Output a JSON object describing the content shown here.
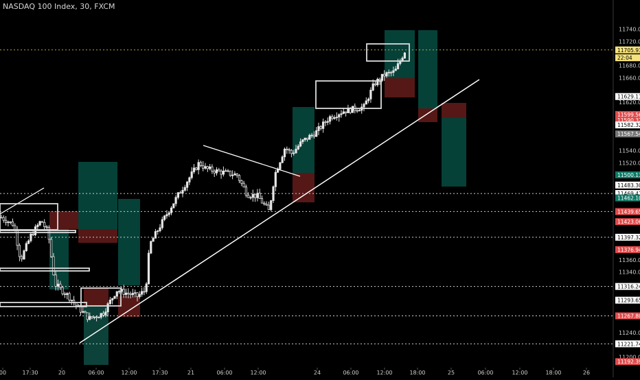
{
  "chart_title": "NASDAQ 100 Index, 30, FXCM",
  "chart_data": {
    "type": "candlestick",
    "title": "NASDAQ 100 Index, 30, FXCM",
    "symbol": "NASDAQ 100 Index",
    "timeframe": "30",
    "source": "FXCM",
    "ylim": [
      11200,
      11740
    ],
    "price_axis_ticks": [
      "11740.00",
      "11720.00",
      "11680.00",
      "11660.00",
      "11620.00",
      "11580.00",
      "11540.00",
      "11520.00",
      "11483.30",
      "11360.00",
      "11340.00",
      "11240.00",
      "11200.00"
    ],
    "price_labels": [
      {
        "value": "11705.93",
        "price": 11705.93,
        "color": "#f5e27a"
      },
      {
        "value": "22:04",
        "price": 11693,
        "color": "#f5e27a"
      },
      {
        "value": "11629.11",
        "price": 11629.11,
        "color": "#ffffff"
      },
      {
        "value": "11599.56",
        "price": 11599.56,
        "color": "#e14b4b"
      },
      {
        "value": "11590.32",
        "price": 11590.32,
        "color": "#e14b4b"
      },
      {
        "value": "11582.32",
        "price": 11582.32,
        "color": "#ffffff"
      },
      {
        "value": "11567.54",
        "price": 11567.54,
        "color": "#787878"
      },
      {
        "value": "11500.13",
        "price": 11500.13,
        "color": "#0e7a67"
      },
      {
        "value": "11483.30",
        "price": 11483.3,
        "color": "#ffffff"
      },
      {
        "value": "11469.41",
        "price": 11469.41,
        "color": "#ffffff"
      },
      {
        "value": "11462.10",
        "price": 11462.1,
        "color": "#0e7a67"
      },
      {
        "value": "11439.65",
        "price": 11439.65,
        "color": "#e14b4b"
      },
      {
        "value": "11423.06",
        "price": 11423.06,
        "color": "#e14b4b"
      },
      {
        "value": "11397.32",
        "price": 11397.32,
        "color": "#ffffff"
      },
      {
        "value": "11376.94",
        "price": 11376.94,
        "color": "#e14b4b"
      },
      {
        "value": "11316.24",
        "price": 11316.24,
        "color": "#ffffff"
      },
      {
        "value": "11293.65",
        "price": 11293.65,
        "color": "#ffffff"
      },
      {
        "value": "11267.80",
        "price": 11267.8,
        "color": "#e14b4b"
      },
      {
        "value": "11221.74",
        "price": 11221.74,
        "color": "#ffffff"
      },
      {
        "value": "11192.39",
        "price": 11192.39,
        "color": "#e14b4b"
      }
    ],
    "time_axis_ticks": [
      "00",
      "17:30",
      "20",
      "06:00",
      "12:00",
      "17:30",
      "21",
      "06:00",
      "12:00",
      "24",
      "06:00",
      "12:00",
      "18:00",
      "25",
      "06:00",
      "12:00",
      "18:00",
      "26"
    ],
    "horizontal_levels": [
      11705.93,
      11469.41,
      11439.65,
      11397.32,
      11316.24,
      11267.8,
      11221.74
    ],
    "colors": {
      "background": "#000000",
      "candle": "#e6e6e6",
      "target_zone": "#06473d",
      "stop_zone": "#5c1a18",
      "label_red": "#e14b4b",
      "label_green": "#0e7a67",
      "label_yellow": "#f5e27a"
    }
  }
}
